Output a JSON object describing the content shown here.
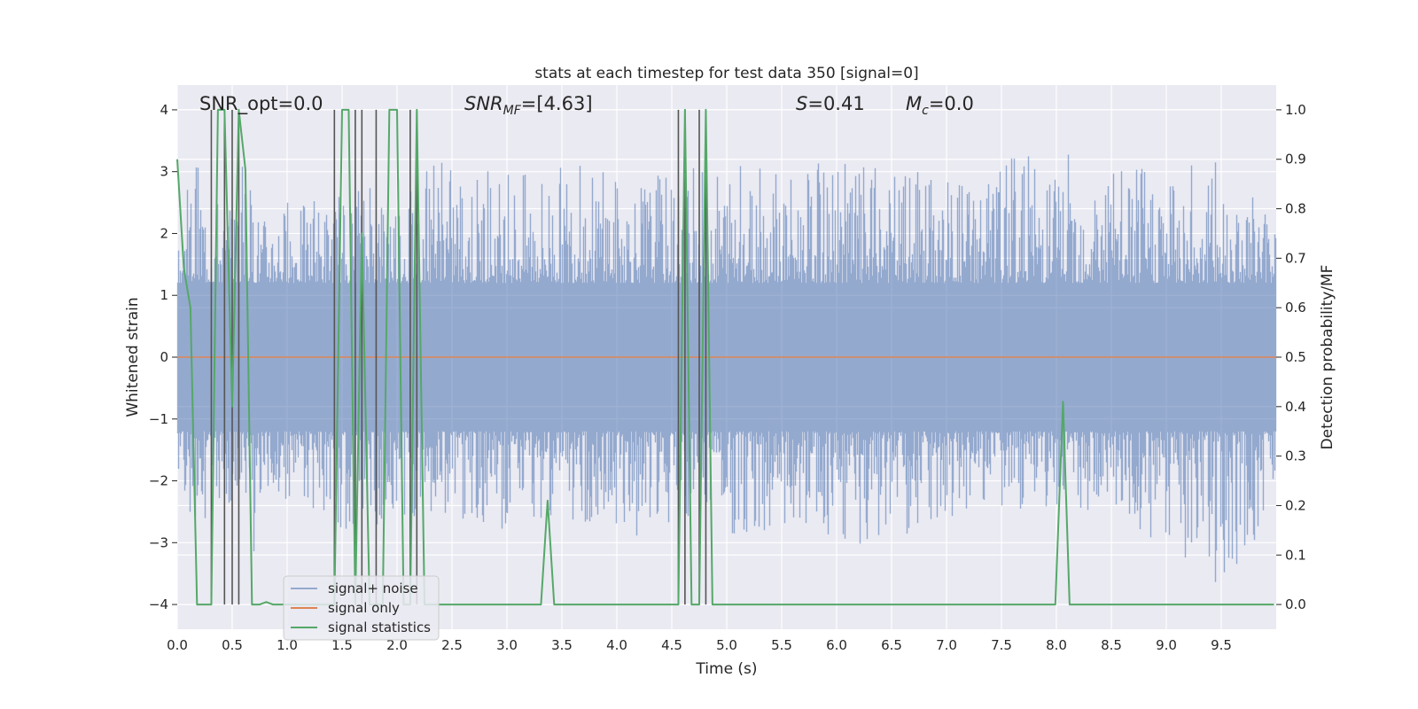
{
  "chart_data": {
    "type": "line",
    "title": "stats at each timestep for test data 350 [signal=0]",
    "xlabel": "Time (s)",
    "ylabel": "Whitened strain",
    "y2label": "Detection probability/MF",
    "xlim": [
      0.0,
      10.0
    ],
    "ylim": [
      -4.4,
      4.4
    ],
    "y2lim": [
      -0.05,
      1.05
    ],
    "xticks": [
      0.0,
      0.5,
      1.0,
      1.5,
      2.0,
      2.5,
      3.0,
      3.5,
      4.0,
      4.5,
      5.0,
      5.5,
      6.0,
      6.5,
      7.0,
      7.5,
      8.0,
      8.5,
      9.0,
      9.5
    ],
    "xtick_labels": [
      "0.0",
      "0.5",
      "1.0",
      "1.5",
      "2.0",
      "2.5",
      "3.0",
      "3.5",
      "4.0",
      "4.5",
      "5.0",
      "5.5",
      "6.0",
      "6.5",
      "7.0",
      "7.5",
      "8.0",
      "8.5",
      "9.0",
      "9.5"
    ],
    "yticks": [
      -4,
      -3,
      -2,
      -1,
      0,
      1,
      2,
      3,
      4
    ],
    "ytick_labels": [
      "−4",
      "−3",
      "−2",
      "−1",
      "0",
      "1",
      "2",
      "3",
      "4"
    ],
    "y2ticks": [
      0.0,
      0.1,
      0.2,
      0.3,
      0.4,
      0.5,
      0.6,
      0.7,
      0.8,
      0.9,
      1.0
    ],
    "y2tick_labels": [
      "0.0",
      "0.1",
      "0.2",
      "0.3",
      "0.4",
      "0.5",
      "0.6",
      "0.7",
      "0.8",
      "0.9",
      "1.0"
    ],
    "grid": true,
    "background": "#eaeaf2",
    "annotations": {
      "snr_opt": "SNR_opt=0.0",
      "snr_mf": "=[4.63]",
      "s_value": "=0.41",
      "mc_value": "=0.0"
    },
    "legend": {
      "placement": "lower-left",
      "entries": [
        {
          "label": "signal+ noise",
          "color": "#4c72b0"
        },
        {
          "label": "signal only",
          "color": "#dd8452"
        },
        {
          "label": "signal statistics",
          "color": "#55a868"
        }
      ]
    },
    "series": [
      {
        "name": "signal+ noise",
        "color": "#4c72b0",
        "axis": "left",
        "envelope": {
          "x": [
            0.0,
            0.1,
            0.2,
            0.3,
            0.4,
            0.5,
            0.6,
            0.7,
            0.8,
            0.9,
            1.0,
            1.5,
            2.0,
            2.5,
            3.0,
            3.5,
            4.0,
            4.5,
            5.0,
            5.5,
            6.0,
            6.5,
            7.0,
            7.5,
            8.0,
            8.5,
            9.0,
            9.5,
            10.0
          ],
          "max": [
            1.6,
            2.8,
            3.25,
            2.4,
            2.8,
            2.3,
            3.2,
            2.5,
            2.3,
            2.6,
            2.5,
            2.6,
            2.9,
            3.2,
            3.0,
            3.2,
            3.0,
            3.0,
            3.2,
            3.0,
            3.2,
            3.1,
            3.0,
            3.2,
            3.4,
            3.2,
            3.2,
            3.3,
            2.5
          ],
          "min": [
            -1.7,
            -2.6,
            -2.9,
            -2.5,
            -2.6,
            -2.4,
            -3.0,
            -3.35,
            -2.5,
            -2.4,
            -2.4,
            -2.8,
            -2.7,
            -2.6,
            -2.8,
            -2.6,
            -3.1,
            -2.7,
            -2.9,
            -2.8,
            -2.9,
            -3.2,
            -2.7,
            -2.6,
            -2.4,
            -2.8,
            -3.0,
            -3.75,
            -2.6
          ]
        }
      },
      {
        "name": "signal only",
        "color": "#dd8452",
        "axis": "left",
        "x": [
          0.0,
          10.0
        ],
        "y": [
          0.0,
          0.0
        ]
      },
      {
        "name": "signal statistics",
        "color": "#55a868",
        "axis": "right",
        "x": [
          0.0,
          0.06,
          0.12,
          0.18,
          0.25,
          0.31,
          0.37,
          0.43,
          0.5,
          0.56,
          0.62,
          0.68,
          0.75,
          0.81,
          0.87,
          0.93,
          1.0,
          1.06,
          1.12,
          1.18,
          1.25,
          1.31,
          1.37,
          1.43,
          1.5,
          1.56,
          1.62,
          1.68,
          1.75,
          1.81,
          1.87,
          1.93,
          2.0,
          2.06,
          2.12,
          2.18,
          2.25,
          2.31,
          3.31,
          3.37,
          3.43,
          4.56,
          4.62,
          4.68,
          4.75,
          4.81,
          4.87,
          7.99,
          8.06,
          8.12,
          9.98
        ],
        "y": [
          0.9,
          0.68,
          0.6,
          0.0,
          0.0,
          0.0,
          1.0,
          1.0,
          0.4,
          1.0,
          0.88,
          0.0,
          0.0,
          0.005,
          0.0,
          0.0,
          0.0,
          0.0,
          0.0,
          0.0,
          0.0,
          0.0,
          0.0,
          0.0,
          1.0,
          1.0,
          0.0,
          0.75,
          0.0,
          0.0,
          0.0,
          1.0,
          1.0,
          0.0,
          0.0,
          1.0,
          0.0,
          0.0,
          0.0,
          0.21,
          0.0,
          0.0,
          1.0,
          0.0,
          0.0,
          1.0,
          0.0,
          0.0,
          0.41,
          0.0,
          0.0
        ]
      }
    ],
    "vertical_markers": {
      "color": "#555555",
      "x": [
        0.31,
        0.43,
        0.5,
        0.56,
        1.43,
        1.62,
        1.68,
        1.81,
        2.12,
        2.18,
        4.56,
        4.62,
        4.75,
        4.81
      ]
    }
  }
}
